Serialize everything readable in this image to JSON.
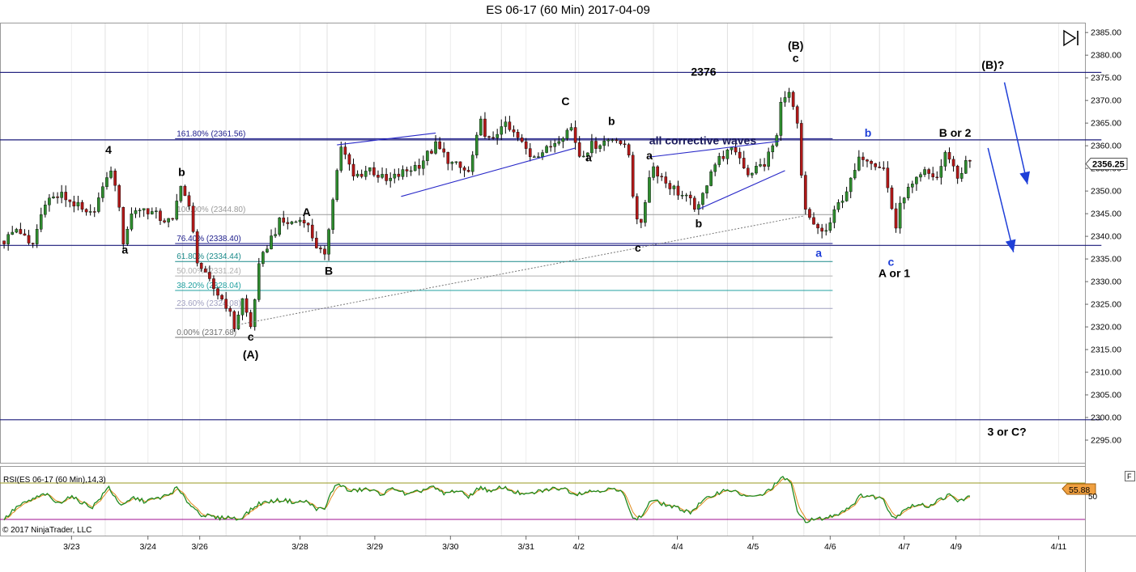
{
  "window": {
    "title": "ES 06-17 (60 Min)  2017-04-09",
    "copyright": "© 2017 NinjaTrader, LLC",
    "last_price_label": "2356.25",
    "rsi_label": "RSI(ES 06-17 (60 Min),14,3)",
    "rsi_value_label": "55.88",
    "rsi_axis_tick": "50",
    "panel_button": "F",
    "play_icon": "play-end-icon"
  },
  "colors": {
    "up_candle": "#2e8b2e",
    "down_candle": "#b01818",
    "wick": "#000000",
    "hline": "#1a1a7a",
    "trendline": "#2828c8",
    "arrow": "#1f3fd8",
    "rsi_line": "#1f8a1f",
    "rsi_signal": "#e08a1a",
    "rsi_upper": "#9a9a20",
    "rsi_lower": "#a01090",
    "price_tag": "#ffffff",
    "rsi_tag": "#f0a040"
  },
  "chart_data": {
    "type": "candlestick",
    "y_range": [
      2290,
      2387
    ],
    "y_ticks": [
      2385,
      2380,
      2375,
      2370,
      2365,
      2360,
      2355,
      2350,
      2345,
      2340,
      2335,
      2330,
      2325,
      2320,
      2315,
      2310,
      2305,
      2300,
      2295
    ],
    "x_range": [
      0,
      1320
    ],
    "x_ticks": [
      {
        "label": "3/23",
        "t": 87
      },
      {
        "label": "3/24",
        "t": 180
      },
      {
        "label": "3/26",
        "t": 243
      },
      {
        "label": "3/28",
        "t": 365
      },
      {
        "label": "3/29",
        "t": 456
      },
      {
        "label": "3/30",
        "t": 548
      },
      {
        "label": "3/31",
        "t": 640
      },
      {
        "label": "4/2",
        "t": 704
      },
      {
        "label": "4/4",
        "t": 824
      },
      {
        "label": "4/5",
        "t": 916
      },
      {
        "label": "4/6",
        "t": 1010
      },
      {
        "label": "4/7",
        "t": 1100
      },
      {
        "label": "4/9",
        "t": 1163
      },
      {
        "label": "4/11",
        "t": 1288
      }
    ],
    "day_separators": [
      128,
      222,
      275,
      398,
      518,
      610,
      700,
      795,
      885,
      978,
      1070,
      1192
    ],
    "price_path": [
      [
        5,
        2339
      ],
      [
        22,
        2342
      ],
      [
        38,
        2337
      ],
      [
        55,
        2348
      ],
      [
        75,
        2349
      ],
      [
        92,
        2347
      ],
      [
        108,
        2344
      ],
      [
        125,
        2350
      ],
      [
        132,
        2355
      ],
      [
        140,
        2352
      ],
      [
        150,
        2339
      ],
      [
        162,
        2346
      ],
      [
        178,
        2346
      ],
      [
        195,
        2344
      ],
      [
        210,
        2343
      ],
      [
        220,
        2352
      ],
      [
        230,
        2346
      ],
      [
        240,
        2335
      ],
      [
        250,
        2331
      ],
      [
        262,
        2328
      ],
      [
        275,
        2325
      ],
      [
        285,
        2320
      ],
      [
        295,
        2326
      ],
      [
        305,
        2320
      ],
      [
        315,
        2333
      ],
      [
        325,
        2338
      ],
      [
        340,
        2343
      ],
      [
        355,
        2343
      ],
      [
        370,
        2344
      ],
      [
        385,
        2338
      ],
      [
        395,
        2335
      ],
      [
        405,
        2349
      ],
      [
        415,
        2360
      ],
      [
        430,
        2353
      ],
      [
        450,
        2355
      ],
      [
        470,
        2352
      ],
      [
        490,
        2354
      ],
      [
        510,
        2356
      ],
      [
        530,
        2360
      ],
      [
        550,
        2356
      ],
      [
        570,
        2354
      ],
      [
        585,
        2365
      ],
      [
        598,
        2360
      ],
      [
        610,
        2365
      ],
      [
        628,
        2362
      ],
      [
        645,
        2358
      ],
      [
        665,
        2359
      ],
      [
        680,
        2362
      ],
      [
        695,
        2364
      ],
      [
        705,
        2358
      ],
      [
        720,
        2360
      ],
      [
        735,
        2361
      ],
      [
        750,
        2362
      ],
      [
        765,
        2358
      ],
      [
        772,
        2346
      ],
      [
        780,
        2342
      ],
      [
        792,
        2356
      ],
      [
        810,
        2352
      ],
      [
        830,
        2349
      ],
      [
        850,
        2346
      ],
      [
        865,
        2355
      ],
      [
        880,
        2358
      ],
      [
        895,
        2359
      ],
      [
        910,
        2354
      ],
      [
        930,
        2356
      ],
      [
        945,
        2362
      ],
      [
        952,
        2372
      ],
      [
        962,
        2371
      ],
      [
        970,
        2364
      ],
      [
        978,
        2346
      ],
      [
        990,
        2342
      ],
      [
        1005,
        2341
      ],
      [
        1020,
        2347
      ],
      [
        1035,
        2352
      ],
      [
        1048,
        2358
      ],
      [
        1060,
        2357
      ],
      [
        1075,
        2355
      ],
      [
        1083,
        2348
      ],
      [
        1090,
        2342
      ],
      [
        1098,
        2349
      ],
      [
        1110,
        2351
      ],
      [
        1125,
        2354
      ],
      [
        1140,
        2353
      ],
      [
        1152,
        2359
      ],
      [
        1165,
        2353
      ],
      [
        1178,
        2357
      ],
      [
        1182,
        2356
      ]
    ],
    "horizontal_lines": [
      {
        "y": 2376.2,
        "x1": 0,
        "x2": 1340
      },
      {
        "y": 2361.3,
        "x1": 0,
        "x2": 1340
      },
      {
        "y": 2338.0,
        "x1": 0,
        "x2": 1340
      },
      {
        "y": 2299.5,
        "x1": 0,
        "x2": 1340
      }
    ],
    "fib_levels": [
      {
        "label": "161.80% (2361.56)",
        "y": 2361.56,
        "color": "#1a1a8a"
      },
      {
        "label": "100.00% (2344.80)",
        "y": 2344.8,
        "color": "#9a9a9a"
      },
      {
        "label": "76.40% (2338.40)",
        "y": 2338.4,
        "color": "#1a1a8a"
      },
      {
        "label": "61.80% (2334.44)",
        "y": 2334.44,
        "color": "#1a8a8a"
      },
      {
        "label": "50.00% (2331.24)",
        "y": 2331.24,
        "color": "#b0b0b0"
      },
      {
        "label": "38.20% (2328.04)",
        "y": 2328.04,
        "color": "#20a0a0"
      },
      {
        "label": "23.60% (2324.08)",
        "y": 2324.08,
        "color": "#a0a0c0"
      },
      {
        "label": "0.00% (2317.68)",
        "y": 2317.68,
        "color": "#707070"
      }
    ],
    "fib_x_range": [
      213,
      1013
    ],
    "trend_lines": [
      {
        "x1": 410,
        "y1": 2360.2,
        "x2": 530,
        "y2": 2362.8
      },
      {
        "x1": 488,
        "y1": 2348.8,
        "x2": 700,
        "y2": 2359.5
      },
      {
        "x1": 790,
        "y1": 2357.5,
        "x2": 948,
        "y2": 2361.0
      },
      {
        "x1": 850,
        "y1": 2346.0,
        "x2": 955,
        "y2": 2354.5
      }
    ],
    "dashed_line": {
      "x1": 290,
      "y1": 2320.5,
      "x2": 978,
      "y2": 2344.5
    },
    "arrows": [
      {
        "x1": 1222,
        "y1": 2374.0,
        "x2": 1250,
        "y2": 2351.5
      },
      {
        "x1": 1202,
        "y1": 2359.5,
        "x2": 1233,
        "y2": 2336.5
      }
    ],
    "annotations": [
      {
        "text": "4",
        "x": 132,
        "y": 2358.2,
        "color": "#000",
        "bold": true
      },
      {
        "text": "a",
        "x": 152,
        "y": 2336.2,
        "color": "#000",
        "bold": true
      },
      {
        "text": "b",
        "x": 221,
        "y": 2353.3,
        "color": "#000",
        "bold": true
      },
      {
        "text": "c",
        "x": 305,
        "y": 2317.0,
        "color": "#000",
        "bold": true
      },
      {
        "text": "(A)",
        "x": 305,
        "y": 2313.0,
        "color": "#000",
        "bold": true
      },
      {
        "text": "A",
        "x": 373,
        "y": 2344.5,
        "color": "#000",
        "bold": true
      },
      {
        "text": "B",
        "x": 400,
        "y": 2331.5,
        "color": "#000",
        "bold": true
      },
      {
        "text": "C",
        "x": 688,
        "y": 2369.0,
        "color": "#000",
        "bold": true
      },
      {
        "text": "a",
        "x": 716,
        "y": 2356.5,
        "color": "#000",
        "bold": true
      },
      {
        "text": "b",
        "x": 744,
        "y": 2364.6,
        "color": "#000",
        "bold": true
      },
      {
        "text": "all corrective waves",
        "x": 855,
        "y": 2360.3,
        "color": "#1a1a5a",
        "bold": true
      },
      {
        "text": "a",
        "x": 790,
        "y": 2357.0,
        "color": "#000",
        "bold": true
      },
      {
        "text": "c",
        "x": 776,
        "y": 2336.6,
        "color": "#000",
        "bold": true
      },
      {
        "text": "b",
        "x": 850,
        "y": 2342.0,
        "color": "#000",
        "bold": true
      },
      {
        "text": "2376",
        "x": 856,
        "y": 2375.5,
        "color": "#000",
        "bold": true
      },
      {
        "text": "(B)",
        "x": 968,
        "y": 2381.3,
        "color": "#000",
        "bold": true
      },
      {
        "text": "c",
        "x": 968,
        "y": 2378.5,
        "color": "#000",
        "bold": true
      },
      {
        "text": "a",
        "x": 996,
        "y": 2335.5,
        "color": "#1f3fd8",
        "bold": true
      },
      {
        "text": "b",
        "x": 1056,
        "y": 2362.0,
        "color": "#1f3fd8",
        "bold": true
      },
      {
        "text": "c",
        "x": 1084,
        "y": 2333.5,
        "color": "#1f3fd8",
        "bold": true
      },
      {
        "text": "A or 1",
        "x": 1088,
        "y": 2331.0,
        "color": "#000",
        "bold": true
      },
      {
        "text": "B or 2",
        "x": 1162,
        "y": 2362.0,
        "color": "#000",
        "bold": true
      },
      {
        "text": "(B)?",
        "x": 1208,
        "y": 2377.0,
        "color": "#000",
        "bold": true
      },
      {
        "text": "3 or C?",
        "x": 1225,
        "y": 2296.0,
        "color": "#000",
        "bold": true
      }
    ],
    "rsi": {
      "y_range": [
        0,
        100
      ],
      "upper": 80,
      "lower": 20,
      "path": [
        [
          5,
          20
        ],
        [
          20,
          40
        ],
        [
          38,
          52
        ],
        [
          55,
          62
        ],
        [
          70,
          46
        ],
        [
          85,
          58
        ],
        [
          100,
          48
        ],
        [
          112,
          40
        ],
        [
          125,
          60
        ],
        [
          132,
          74
        ],
        [
          142,
          52
        ],
        [
          150,
          42
        ],
        [
          162,
          56
        ],
        [
          175,
          50
        ],
        [
          190,
          54
        ],
        [
          205,
          60
        ],
        [
          215,
          72
        ],
        [
          225,
          54
        ],
        [
          235,
          40
        ],
        [
          245,
          28
        ],
        [
          255,
          25
        ],
        [
          265,
          22
        ],
        [
          278,
          24
        ],
        [
          290,
          20
        ],
        [
          302,
          32
        ],
        [
          315,
          46
        ],
        [
          330,
          50
        ],
        [
          345,
          52
        ],
        [
          360,
          48
        ],
        [
          372,
          50
        ],
        [
          385,
          38
        ],
        [
          395,
          36
        ],
        [
          404,
          68
        ],
        [
          412,
          80
        ],
        [
          425,
          66
        ],
        [
          445,
          70
        ],
        [
          465,
          62
        ],
        [
          480,
          72
        ],
        [
          495,
          60
        ],
        [
          510,
          66
        ],
        [
          525,
          74
        ],
        [
          540,
          62
        ],
        [
          555,
          68
        ],
        [
          570,
          58
        ],
        [
          585,
          74
        ],
        [
          598,
          64
        ],
        [
          610,
          74
        ],
        [
          625,
          66
        ],
        [
          640,
          60
        ],
        [
          655,
          66
        ],
        [
          670,
          70
        ],
        [
          685,
          72
        ],
        [
          700,
          62
        ],
        [
          715,
          66
        ],
        [
          730,
          68
        ],
        [
          745,
          70
        ],
        [
          760,
          62
        ],
        [
          770,
          20
        ],
        [
          780,
          24
        ],
        [
          792,
          52
        ],
        [
          810,
          44
        ],
        [
          825,
          38
        ],
        [
          840,
          32
        ],
        [
          855,
          50
        ],
        [
          870,
          62
        ],
        [
          885,
          70
        ],
        [
          900,
          62
        ],
        [
          915,
          56
        ],
        [
          930,
          62
        ],
        [
          945,
          80
        ],
        [
          952,
          88
        ],
        [
          962,
          84
        ],
        [
          970,
          30
        ],
        [
          980,
          18
        ],
        [
          992,
          20
        ],
        [
          1005,
          22
        ],
        [
          1020,
          30
        ],
        [
          1035,
          42
        ],
        [
          1048,
          60
        ],
        [
          1060,
          58
        ],
        [
          1075,
          54
        ],
        [
          1083,
          30
        ],
        [
          1090,
          22
        ],
        [
          1100,
          38
        ],
        [
          1115,
          44
        ],
        [
          1130,
          42
        ],
        [
          1142,
          52
        ],
        [
          1155,
          60
        ],
        [
          1165,
          50
        ],
        [
          1178,
          56
        ],
        [
          1182,
          56
        ]
      ]
    }
  }
}
